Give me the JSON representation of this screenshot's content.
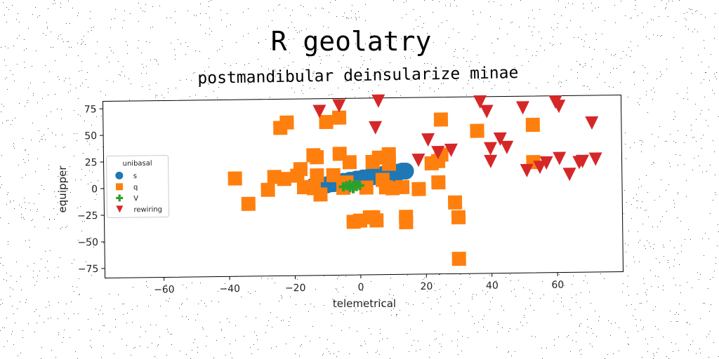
{
  "chart_data": {
    "type": "scatter",
    "title": "R geolatry",
    "subtitle": "postmandibular deinsularize minae",
    "xlabel": "telemetrical",
    "ylabel": "equipper",
    "xlim": [
      -78,
      80
    ],
    "ylim": [
      -84,
      82
    ],
    "xticks": [
      -60,
      -40,
      -20,
      0,
      20,
      40,
      60
    ],
    "yticks": [
      75,
      50,
      25,
      0,
      -25,
      -50,
      -75
    ],
    "xtick_labels": [
      "−60",
      "−40",
      "−20",
      "0",
      "20",
      "40",
      "60"
    ],
    "ytick_labels": [
      "75",
      "50",
      "25",
      "0",
      "−25",
      "−50",
      "−75"
    ],
    "grid": false,
    "legend": {
      "title": "unibasal",
      "position": "center-left",
      "entries": [
        "s",
        "q",
        "V",
        "rewiring"
      ]
    },
    "series": [
      {
        "name": "s",
        "marker": "circle",
        "color": "#1f77b4",
        "points": [
          [
            -14,
            0
          ],
          [
            -12,
            1
          ],
          [
            -10,
            1
          ],
          [
            -9,
            2
          ],
          [
            -8,
            2
          ],
          [
            -7,
            3
          ],
          [
            -6,
            3
          ],
          [
            -5,
            4
          ],
          [
            -4,
            4
          ],
          [
            -3,
            5
          ],
          [
            -2,
            5
          ],
          [
            -1,
            6
          ],
          [
            0,
            6
          ],
          [
            1,
            7
          ],
          [
            2,
            7
          ],
          [
            3,
            8
          ],
          [
            4,
            8
          ],
          [
            5,
            9
          ],
          [
            6,
            9
          ],
          [
            7,
            10
          ],
          [
            8,
            10
          ],
          [
            9,
            11
          ],
          [
            10,
            11
          ],
          [
            11,
            12
          ],
          [
            12,
            12
          ],
          [
            13,
            13
          ],
          [
            14,
            13
          ]
        ]
      },
      {
        "name": "q",
        "marker": "square",
        "color": "#ff7f0e",
        "points": [
          [
            -38,
            8
          ],
          [
            -34,
            -16
          ],
          [
            -28,
            -3
          ],
          [
            -26,
            9
          ],
          [
            -24,
            55
          ],
          [
            -22,
            60
          ],
          [
            -23,
            7
          ],
          [
            -19,
            10
          ],
          [
            -18,
            16
          ],
          [
            -17,
            -1
          ],
          [
            -14,
            -2
          ],
          [
            -14,
            29
          ],
          [
            -13,
            27
          ],
          [
            -12,
            -8
          ],
          [
            -13,
            10
          ],
          [
            -10,
            60
          ],
          [
            -8,
            10
          ],
          [
            -6,
            30
          ],
          [
            -6,
            64
          ],
          [
            -5,
            -2
          ],
          [
            -4,
            3
          ],
          [
            -3,
            22
          ],
          [
            -2,
            -34
          ],
          [
            0,
            -33
          ],
          [
            2,
            -2
          ],
          [
            3,
            -30
          ],
          [
            4,
            -30
          ],
          [
            4,
            22
          ],
          [
            5,
            -33
          ],
          [
            6,
            26
          ],
          [
            7,
            5
          ],
          [
            8,
            -2
          ],
          [
            9,
            29
          ],
          [
            9,
            20
          ],
          [
            10,
            -3
          ],
          [
            13,
            -2
          ],
          [
            14,
            -30
          ],
          [
            14,
            -35
          ],
          [
            18,
            -4
          ],
          [
            22,
            20
          ],
          [
            24,
            2
          ],
          [
            24,
            22
          ],
          [
            25,
            61
          ],
          [
            25,
            28
          ],
          [
            29,
            -17
          ],
          [
            30,
            -31
          ],
          [
            30,
            -70
          ],
          [
            36,
            50
          ],
          [
            53,
            55
          ],
          [
            53,
            20
          ]
        ]
      },
      {
        "name": "V",
        "marker": "plus",
        "color": "#2ca02c",
        "points": [
          [
            -5,
            -1
          ],
          [
            -4,
            0
          ],
          [
            -3,
            -2
          ],
          [
            -2,
            0
          ],
          [
            -1,
            1
          ],
          [
            -3,
            1
          ],
          [
            -2,
            -3
          ],
          [
            -1,
            -1
          ],
          [
            0,
            0
          ]
        ]
      },
      {
        "name": "rewiring",
        "marker": "triangle-down",
        "color": "#d62728",
        "points": [
          [
            -12,
            70
          ],
          [
            -6,
            75
          ],
          [
            6,
            79
          ],
          [
            5,
            54
          ],
          [
            18,
            23
          ],
          [
            21,
            42
          ],
          [
            24,
            30
          ],
          [
            28,
            32
          ],
          [
            37,
            77
          ],
          [
            39,
            68
          ],
          [
            40,
            33
          ],
          [
            40,
            21
          ],
          [
            43,
            42
          ],
          [
            45,
            34
          ],
          [
            50,
            71
          ],
          [
            51,
            12
          ],
          [
            55,
            15
          ],
          [
            57,
            19
          ],
          [
            60,
            76
          ],
          [
            61,
            72
          ],
          [
            61,
            23
          ],
          [
            64,
            8
          ],
          [
            67,
            19
          ],
          [
            68,
            20
          ],
          [
            71,
            56
          ],
          [
            72,
            22
          ]
        ]
      }
    ]
  }
}
